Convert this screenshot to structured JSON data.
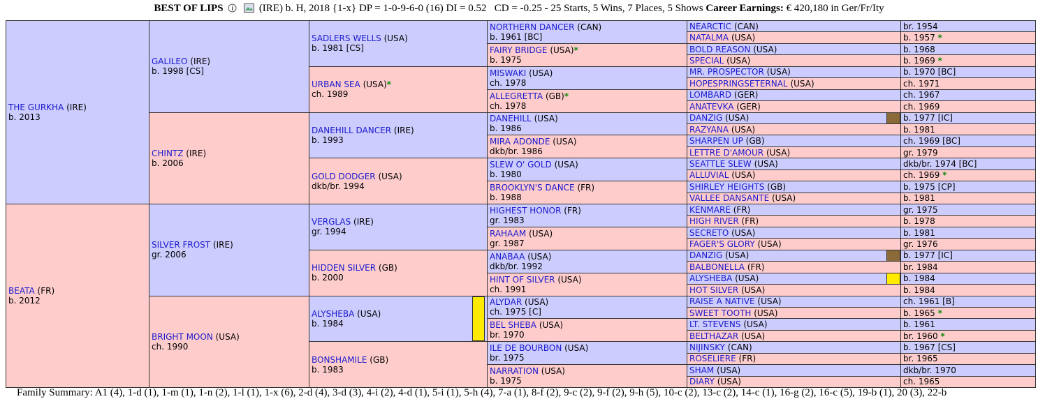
{
  "header": {
    "name": "BEST OF LIPS",
    "details": "(IRE) b. H, 2018 {1-x} DP = 1-0-9-6-0 (16) DI = 0.52   CD = -0.25 - 25 Starts, 5 Wins, 7 Places, 5 Shows",
    "earnings_label": "Career Earnings:",
    "earnings": "€ 420,180 in Ger/Fr/Ity"
  },
  "pedigree": {
    "generations": [
      [
        {
          "name": "THE GURKHA",
          "country": "(IRE)",
          "born": "b. 2013"
        },
        {
          "name": "BEATA",
          "country": "(FR)",
          "born": "b. 2012"
        }
      ],
      [
        {
          "name": "GALILEO",
          "country": "(IRE)",
          "born": "b. 1998 [CS]"
        },
        {
          "name": "CHINTZ",
          "country": "(IRE)",
          "born": "b. 2006"
        },
        {
          "name": "SILVER FROST",
          "country": "(IRE)",
          "born": "gr. 2006"
        },
        {
          "name": "BRIGHT MOON",
          "country": "(USA)",
          "born": "ch. 1990"
        }
      ],
      [
        {
          "name": "SADLERS WELLS",
          "country": "(USA)",
          "born": "b. 1981 [CS]"
        },
        {
          "name": "URBAN SEA",
          "country": "(USA)",
          "star": "*",
          "born": "ch. 1989"
        },
        {
          "name": "DANEHILL DANCER",
          "country": "(IRE)",
          "born": "b. 1993"
        },
        {
          "name": "GOLD DODGER",
          "country": "(USA)",
          "born": "dkb/br. 1994"
        },
        {
          "name": "VERGLAS",
          "country": "(IRE)",
          "born": "gr. 1994"
        },
        {
          "name": "HIDDEN SILVER",
          "country": "(GB)",
          "born": "b. 2000"
        },
        {
          "name": "ALYSHEBA",
          "country": "(USA)",
          "born": "b. 1984",
          "highlight": "#ffea00"
        },
        {
          "name": "BONSHAMILE",
          "country": "(GB)",
          "born": "b. 1983"
        }
      ],
      [
        {
          "name": "NORTHERN DANCER",
          "country": "(CAN)",
          "born": "b. 1961 [BC]"
        },
        {
          "name": "FAIRY BRIDGE",
          "country": "(USA)",
          "star": "*",
          "born": "b. 1975"
        },
        {
          "name": "MISWAKI",
          "country": "(USA)",
          "born": "ch. 1978"
        },
        {
          "name": "ALLEGRETTA",
          "country": "(GB)",
          "star": "*",
          "born": "ch. 1978"
        },
        {
          "name": "DANEHILL",
          "country": "(USA)",
          "born": "b. 1986"
        },
        {
          "name": "MIRA ADONDE",
          "country": "(USA)",
          "born": "dkb/br. 1986"
        },
        {
          "name": "SLEW O' GOLD",
          "country": "(USA)",
          "born": "b. 1980"
        },
        {
          "name": "BROOKLYN'S DANCE",
          "country": "(FR)",
          "born": "b. 1988"
        },
        {
          "name": "HIGHEST HONOR",
          "country": "(FR)",
          "born": "gr. 1983"
        },
        {
          "name": "RAHAAM",
          "country": "(USA)",
          "born": "gr. 1987"
        },
        {
          "name": "ANABAA",
          "country": "(USA)",
          "born": "dkb/br. 1992"
        },
        {
          "name": "HINT OF SILVER",
          "country": "(USA)",
          "born": "ch. 1991"
        },
        {
          "name": "ALYDAR",
          "country": "(USA)",
          "born": "ch. 1975 [C]"
        },
        {
          "name": "BEL SHEBA",
          "country": "(USA)",
          "born": "br. 1970"
        },
        {
          "name": "ILE DE BOURBON",
          "country": "(USA)",
          "born": "br. 1975"
        },
        {
          "name": "NARRATION",
          "country": "(USA)",
          "born": "b. 1975"
        }
      ],
      [
        {
          "name": "NEARCTIC",
          "country": "(CAN)",
          "born": "br. 1954"
        },
        {
          "name": "NATALMA",
          "country": "(USA)",
          "born": "b. 1957",
          "star": "*"
        },
        {
          "name": "BOLD REASON",
          "country": "(USA)",
          "born": "b. 1968"
        },
        {
          "name": "SPECIAL",
          "country": "(USA)",
          "born": "b. 1969",
          "star": "*"
        },
        {
          "name": "MR. PROSPECTOR",
          "country": "(USA)",
          "born": "b. 1970 [BC]"
        },
        {
          "name": "HOPESPRINGSETERNAL",
          "country": "(USA)",
          "born": "ch. 1971"
        },
        {
          "name": "LOMBARD",
          "country": "(GER)",
          "born": "ch. 1967"
        },
        {
          "name": "ANATEVKA",
          "country": "(GER)",
          "born": "ch. 1969"
        },
        {
          "name": "DANZIG",
          "country": "(USA)",
          "born": "b. 1977 [IC]",
          "highlight": "#8b6a3a"
        },
        {
          "name": "RAZYANA",
          "country": "(USA)",
          "born": "b. 1981"
        },
        {
          "name": "SHARPEN UP",
          "country": "(GB)",
          "born": "ch. 1969 [BC]"
        },
        {
          "name": "LETTRE D'AMOUR",
          "country": "(USA)",
          "born": "gr. 1979"
        },
        {
          "name": "SEATTLE SLEW",
          "country": "(USA)",
          "born": "dkb/br. 1974 [BC]"
        },
        {
          "name": "ALLUVIAL",
          "country": "(USA)",
          "born": "ch. 1969",
          "star": "*"
        },
        {
          "name": "SHIRLEY HEIGHTS",
          "country": "(GB)",
          "born": "b. 1975 [CP]"
        },
        {
          "name": "VALLEE DANSANTE",
          "country": "(USA)",
          "born": "b. 1981"
        },
        {
          "name": "KENMARE",
          "country": "(FR)",
          "born": "gr. 1975"
        },
        {
          "name": "HIGH RIVER",
          "country": "(FR)",
          "born": "b. 1978"
        },
        {
          "name": "SECRETO",
          "country": "(USA)",
          "born": "b. 1981"
        },
        {
          "name": "FAGER'S GLORY",
          "country": "(USA)",
          "born": "gr. 1976"
        },
        {
          "name": "DANZIG",
          "country": "(USA)",
          "born": "b. 1977 [IC]",
          "highlight": "#8b6a3a"
        },
        {
          "name": "BALBONELLA",
          "country": "(FR)",
          "born": "br. 1984"
        },
        {
          "name": "ALYSHEBA",
          "country": "(USA)",
          "born": "b. 1984",
          "highlight": "#ffea00"
        },
        {
          "name": "HOT SILVER",
          "country": "(USA)",
          "born": "b. 1984"
        },
        {
          "name": "RAISE A NATIVE",
          "country": "(USA)",
          "born": "ch. 1961 [B]"
        },
        {
          "name": "SWEET TOOTH",
          "country": "(USA)",
          "born": "b. 1965",
          "star": "*"
        },
        {
          "name": "LT. STEVENS",
          "country": "(USA)",
          "born": "b. 1961"
        },
        {
          "name": "BELTHAZAR",
          "country": "(USA)",
          "born": "br. 1960",
          "star": "*"
        },
        {
          "name": "NIJINSKY",
          "country": "(CAN)",
          "born": "b. 1967 [CS]"
        },
        {
          "name": "ROSELIERE",
          "country": "(FR)",
          "born": "br. 1965"
        },
        {
          "name": "SHAM",
          "country": "(USA)",
          "born": "dkb/br. 1970"
        },
        {
          "name": "DIARY",
          "country": "(USA)",
          "born": "ch. 1965"
        }
      ]
    ]
  },
  "footer": {
    "label": "Family Summary:",
    "text": "A1 (4), 1-d (1), 1-m (1), 1-n (2), 1-l (1), 1-x (6), 2-d (4), 3-d (3), 4-i (2), 4-d (1), 5-i (1), 5-h (4), 7-a (1), 8-f (2), 9-c (2), 9-f (2), 9-h (5), 10-c (2), 13-c (2), 14-c (1), 16-g (2), 16-c (5), 19-b (1), 20 (3), 22-b"
  }
}
